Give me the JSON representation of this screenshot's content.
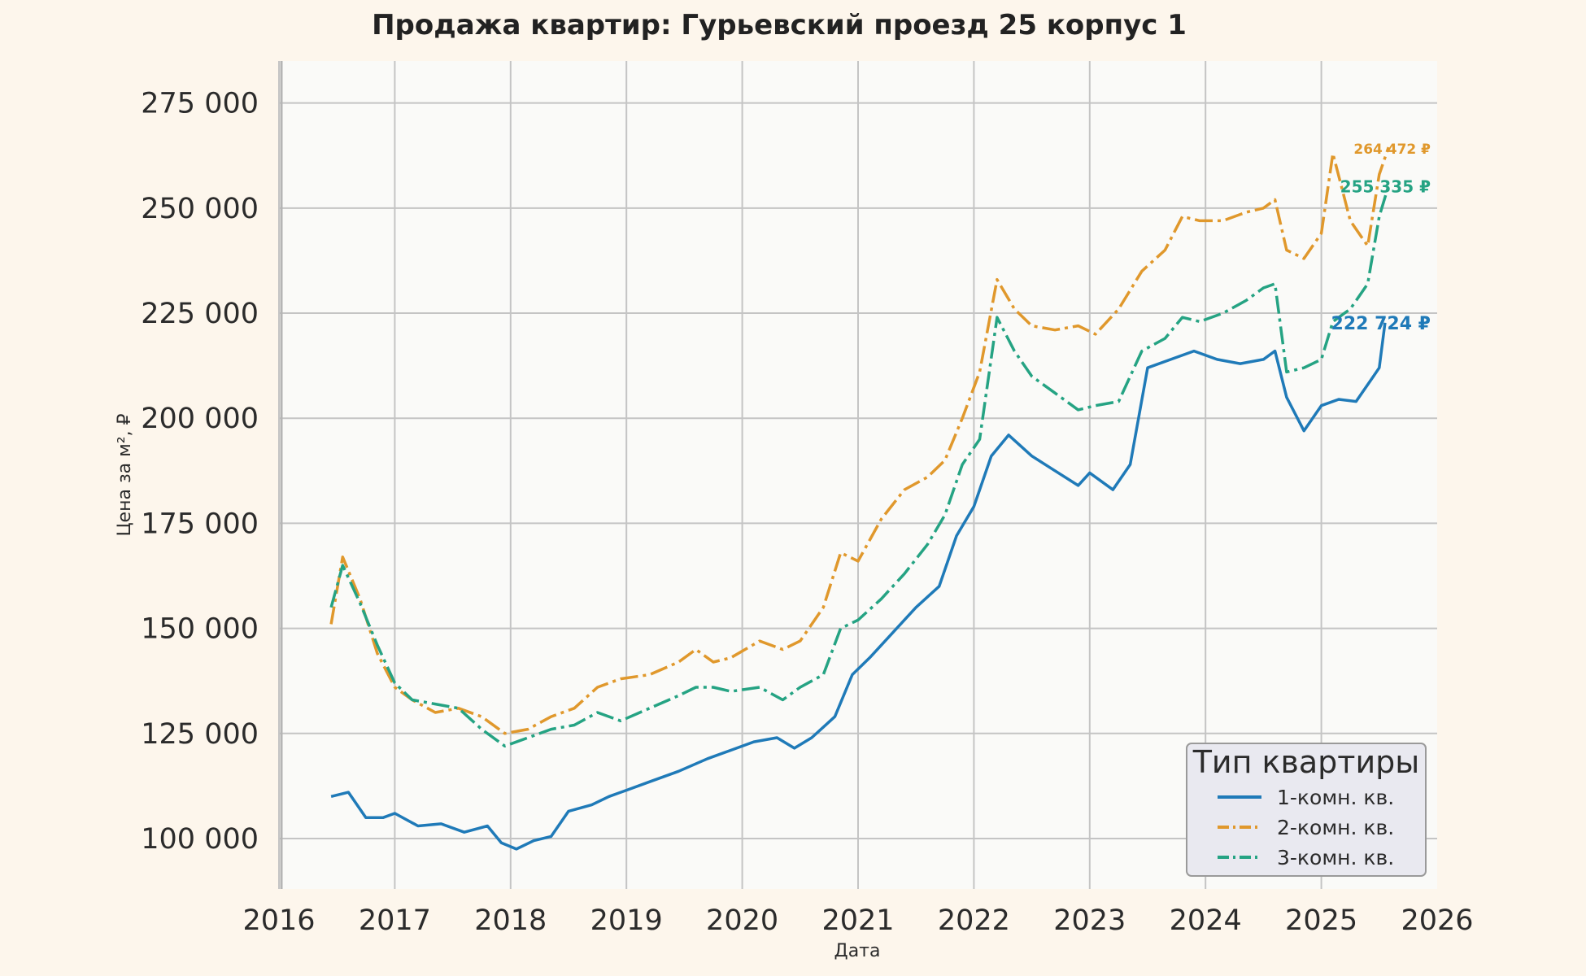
{
  "chart_data": {
    "type": "line",
    "title": "Продажа квартир: Гурьевский проезд 25 корпус 1",
    "xlabel": "Дата",
    "ylabel": "Цена за м², ₽",
    "xlim": [
      2016.0,
      2026.0
    ],
    "ylim": [
      88000,
      285000
    ],
    "x_ticks": [
      2016,
      2017,
      2018,
      2019,
      2020,
      2021,
      2022,
      2023,
      2024,
      2025,
      2026
    ],
    "y_ticks": [
      100000,
      125000,
      150000,
      175000,
      200000,
      225000,
      250000,
      275000
    ],
    "y_tick_labels": [
      "100 000",
      "125 000",
      "150 000",
      "175 000",
      "200 000",
      "225 000",
      "250 000",
      "275 000"
    ],
    "grid": true,
    "legend": {
      "title": "Тип квартиры",
      "placement": "bottom-right"
    },
    "series": [
      {
        "name": "1-комн. кв.",
        "color": "#1f7ab8",
        "dash": "solid",
        "end_label": "222 724 ₽",
        "x": [
          2016.45,
          2016.6,
          2016.75,
          2016.9,
          2017.0,
          2017.2,
          2017.4,
          2017.6,
          2017.8,
          2017.92,
          2018.05,
          2018.2,
          2018.35,
          2018.5,
          2018.7,
          2018.85,
          2019.0,
          2019.2,
          2019.45,
          2019.7,
          2019.9,
          2020.1,
          2020.3,
          2020.45,
          2020.6,
          2020.8,
          2020.95,
          2021.1,
          2021.3,
          2021.5,
          2021.7,
          2021.85,
          2022.0,
          2022.15,
          2022.3,
          2022.5,
          2022.7,
          2022.9,
          2023.0,
          2023.2,
          2023.35,
          2023.5,
          2023.7,
          2023.9,
          2024.1,
          2024.3,
          2024.5,
          2024.6,
          2024.7,
          2024.85,
          2025.0,
          2025.15,
          2025.3,
          2025.45,
          2025.5,
          2025.55
        ],
        "y": [
          110000,
          111000,
          105000,
          105000,
          106000,
          103000,
          103500,
          101500,
          103000,
          99000,
          97500,
          99500,
          100500,
          106500,
          108000,
          110000,
          111500,
          113500,
          116000,
          119000,
          121000,
          123000,
          124000,
          121500,
          124000,
          129000,
          139000,
          143000,
          149000,
          155000,
          160000,
          172000,
          179000,
          191000,
          196000,
          191000,
          187500,
          184000,
          187000,
          183000,
          189000,
          212000,
          214000,
          216000,
          214000,
          213000,
          214000,
          216000,
          205000,
          197000,
          203000,
          204500,
          204000,
          210000,
          212000,
          222724
        ]
      },
      {
        "name": "2-комн. кв.",
        "color": "#e0982c",
        "dash": "dashdot",
        "end_label": "264 472 ₽",
        "x": [
          2016.45,
          2016.55,
          2016.7,
          2016.85,
          2017.0,
          2017.15,
          2017.35,
          2017.55,
          2017.75,
          2017.95,
          2018.15,
          2018.35,
          2018.55,
          2018.75,
          2018.95,
          2019.2,
          2019.45,
          2019.6,
          2019.75,
          2019.9,
          2020.15,
          2020.35,
          2020.5,
          2020.7,
          2020.85,
          2021.0,
          2021.2,
          2021.4,
          2021.6,
          2021.75,
          2021.9,
          2022.05,
          2022.2,
          2022.35,
          2022.5,
          2022.7,
          2022.9,
          2023.05,
          2023.25,
          2023.45,
          2023.65,
          2023.8,
          2023.95,
          2024.15,
          2024.35,
          2024.5,
          2024.6,
          2024.7,
          2024.85,
          2025.0,
          2025.1,
          2025.25,
          2025.4,
          2025.5,
          2025.58
        ],
        "y": [
          151000,
          167000,
          157000,
          144000,
          136000,
          133000,
          130000,
          131000,
          129000,
          125000,
          126000,
          129000,
          131000,
          136000,
          138000,
          139000,
          142000,
          145000,
          142000,
          143000,
          147000,
          145000,
          147000,
          155000,
          168000,
          166000,
          176000,
          183000,
          186000,
          190000,
          200000,
          211000,
          233000,
          226000,
          222000,
          221000,
          222000,
          220000,
          226000,
          235000,
          240000,
          248000,
          247000,
          247000,
          249000,
          250000,
          252000,
          240000,
          238000,
          244000,
          263000,
          247000,
          241000,
          258000,
          264472
        ]
      },
      {
        "name": "3-комн. кв.",
        "color": "#25a383",
        "dash": "dashdot",
        "end_label": "255 335 ₽",
        "x": [
          2016.45,
          2016.55,
          2016.7,
          2016.85,
          2017.0,
          2017.15,
          2017.35,
          2017.55,
          2017.75,
          2017.95,
          2018.15,
          2018.35,
          2018.55,
          2018.75,
          2018.95,
          2019.2,
          2019.45,
          2019.6,
          2019.75,
          2019.9,
          2020.15,
          2020.35,
          2020.5,
          2020.7,
          2020.85,
          2021.0,
          2021.2,
          2021.4,
          2021.6,
          2021.75,
          2021.9,
          2022.05,
          2022.2,
          2022.35,
          2022.5,
          2022.7,
          2022.9,
          2023.05,
          2023.25,
          2023.45,
          2023.65,
          2023.8,
          2023.95,
          2024.15,
          2024.35,
          2024.5,
          2024.6,
          2024.7,
          2024.85,
          2025.0,
          2025.1,
          2025.25,
          2025.4,
          2025.5,
          2025.58
        ],
        "y": [
          155000,
          165000,
          156000,
          146000,
          137000,
          133000,
          132000,
          131000,
          126000,
          122000,
          124000,
          126000,
          127000,
          130000,
          128000,
          131000,
          134000,
          136000,
          136000,
          135000,
          136000,
          133000,
          136000,
          139000,
          150000,
          152000,
          157000,
          163000,
          170000,
          177000,
          189000,
          195000,
          224000,
          216000,
          210000,
          206000,
          202000,
          203000,
          204000,
          216000,
          219000,
          224000,
          223000,
          225000,
          228000,
          231000,
          232000,
          211000,
          212000,
          214000,
          223000,
          226000,
          232000,
          248000,
          255335
        ]
      }
    ]
  }
}
